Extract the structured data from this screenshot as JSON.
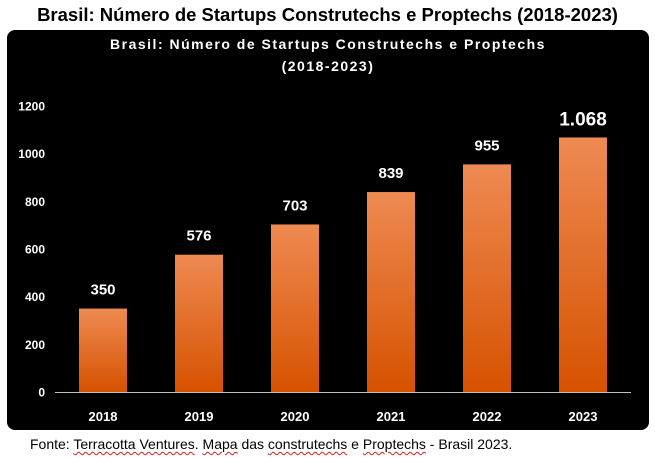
{
  "page_title": "Brasil: Número de Startups Construtechs e Proptechs (2018-2023)",
  "source": {
    "label": "Fonte:",
    "org": "Terracotta Ventures",
    "sep": ". ",
    "mapa": "Mapa",
    "das": " das ",
    "construtechs": "construtechs",
    "e": " e ",
    "proptechs": "Proptechs",
    "end": " - Brasil 2023."
  },
  "colors": {
    "background": "#000000",
    "bar_top": "#ee8a52",
    "bar_bottom": "#d65200",
    "text": "#ffffff"
  },
  "chart_data": {
    "type": "bar",
    "title_line1": "Brasil: Número de Startups Construtechs e Proptechs",
    "title_line2": "(2018-2023)",
    "categories": [
      "2018",
      "2019",
      "2020",
      "2021",
      "2022",
      "2023"
    ],
    "values": [
      350,
      576,
      703,
      839,
      955,
      1068
    ],
    "value_labels": [
      "350",
      "576",
      "703",
      "839",
      "955",
      "1.068"
    ],
    "y_ticks": [
      "0",
      "200",
      "400",
      "600",
      "800",
      "1000",
      "1200"
    ],
    "ylim": [
      0,
      1200
    ],
    "xlabel": "",
    "ylabel": "",
    "grid": false,
    "legend": "none"
  }
}
